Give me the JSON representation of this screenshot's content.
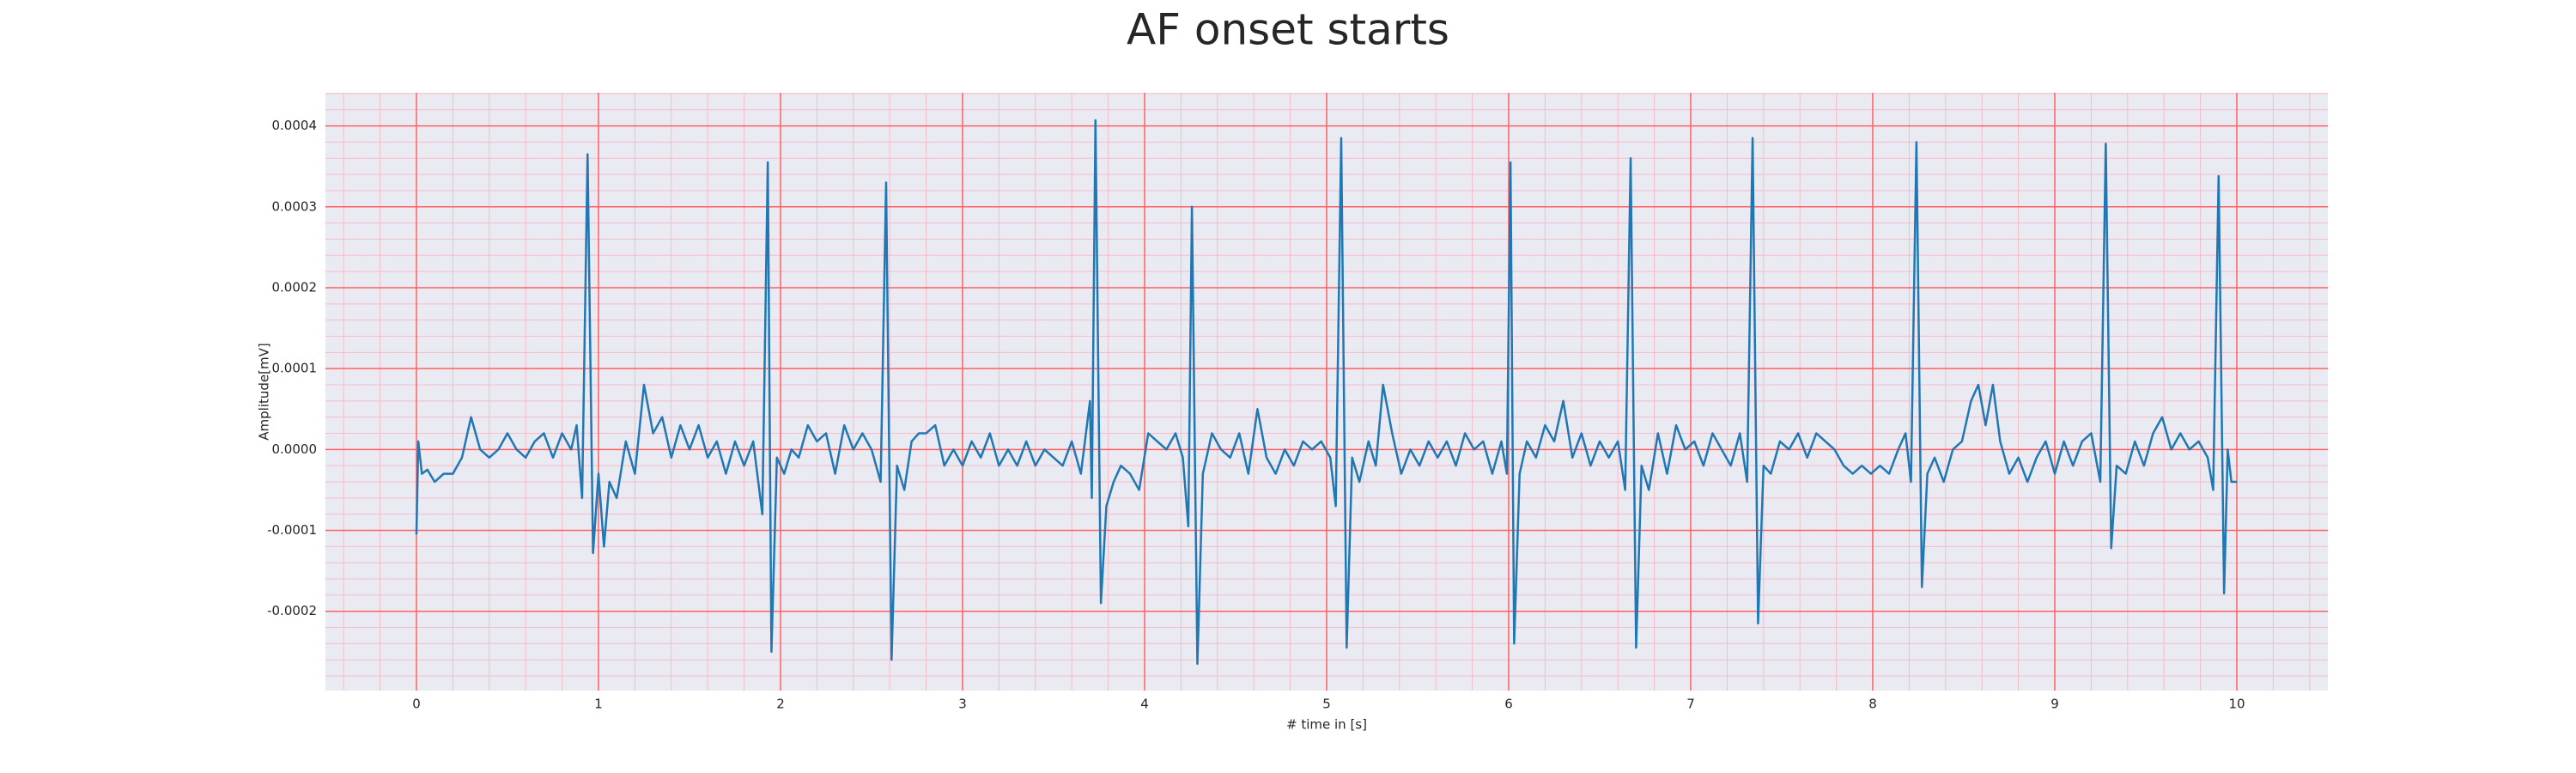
{
  "chart_data": {
    "type": "line",
    "title": "AF onset starts",
    "xlabel": "# time in [s]",
    "ylabel": "Amplitude[mV]",
    "color": "#1f77b4",
    "background": "#eaeaf2",
    "grid": true,
    "grid_color": "#ff6060",
    "minor_grid": true,
    "minor_grid_color": "#f6bcc8",
    "minor_divisions": 5,
    "xlim": [
      -0.5,
      10.5
    ],
    "ylim": [
      -0.000298,
      0.000441
    ],
    "xticks": [
      0,
      1,
      2,
      3,
      4,
      5,
      6,
      7,
      8,
      9,
      10
    ],
    "yticks": [
      -0.0002,
      -0.0001,
      {
        "value": 0,
        "label": "0.0000"
      },
      0.0001,
      0.0002,
      0.0003,
      0.0004
    ],
    "x": [
      0,
      0.01,
      0.03,
      0.06,
      0.1,
      0.15,
      0.2,
      0.25,
      0.3,
      0.35,
      0.4,
      0.45,
      0.5,
      0.55,
      0.6,
      0.65,
      0.7,
      0.75,
      0.8,
      0.85,
      0.88,
      0.91,
      0.94,
      0.97,
      1.0,
      1.03,
      1.06,
      1.1,
      1.15,
      1.2,
      1.25,
      1.3,
      1.35,
      1.4,
      1.45,
      1.5,
      1.55,
      1.6,
      1.65,
      1.7,
      1.75,
      1.8,
      1.85,
      1.9,
      1.93,
      1.95,
      1.98,
      2.02,
      2.06,
      2.1,
      2.15,
      2.2,
      2.25,
      2.3,
      2.35,
      2.4,
      2.45,
      2.5,
      2.55,
      2.58,
      2.61,
      2.64,
      2.68,
      2.72,
      2.76,
      2.8,
      2.85,
      2.9,
      2.95,
      3.0,
      3.05,
      3.1,
      3.15,
      3.2,
      3.25,
      3.3,
      3.35,
      3.4,
      3.45,
      3.5,
      3.55,
      3.6,
      3.65,
      3.7,
      3.71,
      3.73,
      3.76,
      3.79,
      3.83,
      3.87,
      3.92,
      3.97,
      4.02,
      4.07,
      4.12,
      4.17,
      4.21,
      4.24,
      4.26,
      4.29,
      4.32,
      4.37,
      4.42,
      4.47,
      4.52,
      4.57,
      4.62,
      4.67,
      4.72,
      4.77,
      4.82,
      4.87,
      4.92,
      4.97,
      5.02,
      5.05,
      5.08,
      5.11,
      5.14,
      5.18,
      5.23,
      5.27,
      5.31,
      5.36,
      5.41,
      5.46,
      5.51,
      5.56,
      5.61,
      5.66,
      5.71,
      5.76,
      5.81,
      5.86,
      5.91,
      5.96,
      5.99,
      6.01,
      6.03,
      6.06,
      6.1,
      6.15,
      6.2,
      6.25,
      6.3,
      6.35,
      6.4,
      6.45,
      6.5,
      6.55,
      6.6,
      6.64,
      6.67,
      6.7,
      6.73,
      6.77,
      6.82,
      6.87,
      6.92,
      6.97,
      7.02,
      7.07,
      7.12,
      7.17,
      7.22,
      7.27,
      7.31,
      7.34,
      7.37,
      7.4,
      7.44,
      7.49,
      7.54,
      7.59,
      7.64,
      7.69,
      7.74,
      7.79,
      7.84,
      7.89,
      7.94,
      7.99,
      8.04,
      8.09,
      8.14,
      8.18,
      8.21,
      8.24,
      8.27,
      8.3,
      8.34,
      8.39,
      8.44,
      8.49,
      8.54,
      8.58,
      8.62,
      8.66,
      8.7,
      8.75,
      8.8,
      8.85,
      8.9,
      8.95,
      9.0,
      9.05,
      9.1,
      9.15,
      9.2,
      9.25,
      9.28,
      9.31,
      9.34,
      9.39,
      9.44,
      9.49,
      9.54,
      9.59,
      9.64,
      9.69,
      9.74,
      9.79,
      9.84,
      9.87,
      9.9,
      9.93,
      9.95,
      9.97,
      10.0
    ],
    "values": [
      -0.000105,
      1e-05,
      -3e-05,
      -2.5e-05,
      -4e-05,
      -3e-05,
      -3e-05,
      -1e-05,
      4e-05,
      0.0,
      -1e-05,
      0.0,
      2e-05,
      0.0,
      -1e-05,
      1e-05,
      2e-05,
      -1e-05,
      2e-05,
      0.0,
      3e-05,
      -6e-05,
      0.000365,
      -0.000128,
      -3e-05,
      -0.00012,
      -4e-05,
      -6e-05,
      1e-05,
      -3e-05,
      8e-05,
      2e-05,
      4e-05,
      -1e-05,
      3e-05,
      0.0,
      3e-05,
      -1e-05,
      1e-05,
      -3e-05,
      1e-05,
      -2e-05,
      1e-05,
      -8e-05,
      0.000355,
      -0.00025,
      -1e-05,
      -3e-05,
      0.0,
      -1e-05,
      3e-05,
      1e-05,
      2e-05,
      -3e-05,
      3e-05,
      0.0,
      2e-05,
      0.0,
      -4e-05,
      0.00033,
      -0.00026,
      -2e-05,
      -5e-05,
      1e-05,
      2e-05,
      2e-05,
      3e-05,
      -2e-05,
      0.0,
      -2e-05,
      1e-05,
      -1e-05,
      2e-05,
      -2e-05,
      0.0,
      -2e-05,
      1e-05,
      -2e-05,
      0.0,
      -1e-05,
      -2e-05,
      1e-05,
      -3e-05,
      6e-05,
      -6e-05,
      0.000407,
      -0.00019,
      -7e-05,
      -4e-05,
      -2e-05,
      -3e-05,
      -5e-05,
      2e-05,
      1e-05,
      0.0,
      2e-05,
      -1e-05,
      -9.5e-05,
      0.0003,
      -0.000265,
      -3e-05,
      2e-05,
      0.0,
      -1e-05,
      2e-05,
      -3e-05,
      5e-05,
      -1e-05,
      -3e-05,
      0.0,
      -2e-05,
      1e-05,
      0.0,
      1e-05,
      -1e-05,
      -7e-05,
      0.000385,
      -0.000245,
      -1e-05,
      -4e-05,
      1e-05,
      -2e-05,
      8e-05,
      2e-05,
      -3e-05,
      0.0,
      -2e-05,
      1e-05,
      -1e-05,
      1e-05,
      -2e-05,
      2e-05,
      0.0,
      1e-05,
      -3e-05,
      1e-05,
      -3e-05,
      0.000355,
      -0.00024,
      -3e-05,
      1e-05,
      -1e-05,
      3e-05,
      1e-05,
      6e-05,
      -1e-05,
      2e-05,
      -2e-05,
      1e-05,
      -1e-05,
      1e-05,
      -5e-05,
      0.00036,
      -0.000245,
      -2e-05,
      -5e-05,
      2e-05,
      -3e-05,
      3e-05,
      0.0,
      1e-05,
      -2e-05,
      2e-05,
      0.0,
      -2e-05,
      2e-05,
      -4e-05,
      0.000385,
      -0.000215,
      -2e-05,
      -3e-05,
      1e-05,
      0.0,
      2e-05,
      -1e-05,
      2e-05,
      1e-05,
      0.0,
      -2e-05,
      -3e-05,
      -2e-05,
      -3e-05,
      -2e-05,
      -3e-05,
      0.0,
      2e-05,
      -4e-05,
      0.00038,
      -0.00017,
      -3e-05,
      -1e-05,
      -4e-05,
      0.0,
      1e-05,
      6e-05,
      8e-05,
      3e-05,
      8e-05,
      1e-05,
      -3e-05,
      -1e-05,
      -4e-05,
      -1e-05,
      1e-05,
      -3e-05,
      1e-05,
      -2e-05,
      1e-05,
      2e-05,
      -4e-05,
      0.000378,
      -0.000122,
      -2e-05,
      -3e-05,
      1e-05,
      -2e-05,
      2e-05,
      4e-05,
      0.0,
      2e-05,
      0.0,
      1e-05,
      -1e-05,
      -5e-05,
      0.000338,
      -0.000178,
      0.0,
      -4e-05,
      -4e-05
    ]
  }
}
